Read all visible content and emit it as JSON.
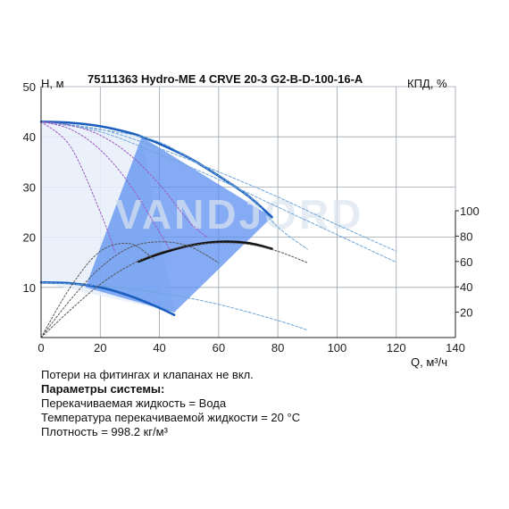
{
  "chart_data": {
    "type": "line",
    "title": "75111363 Hydro-ME 4 CRVE 20-3 G2-B-D-100-16-A",
    "ylabel": "H, м",
    "y2label": "КПД, %",
    "xlabel": "Q, м³/ч",
    "xlim": [
      0,
      140
    ],
    "ylim": [
      0,
      50
    ],
    "y2lim": [
      0,
      100
    ],
    "x_ticks": [
      "0",
      "20",
      "40",
      "60",
      "80",
      "100",
      "120",
      "140"
    ],
    "y_ticks": [
      "10",
      "20",
      "30",
      "40",
      "50"
    ],
    "y2_ticks": [
      "20",
      "40",
      "60",
      "80",
      "100"
    ],
    "grid": true,
    "watermark": "VANDJORD",
    "operating_area": {
      "color": "#5b8ff0",
      "polygon": [
        [
          34,
          40
        ],
        [
          78,
          24
        ],
        [
          45,
          5
        ],
        [
          15,
          10
        ]
      ]
    },
    "series": [
      {
        "role": "max_speed_curve",
        "color": "#1a5fc0",
        "x": [
          0,
          10,
          20,
          30,
          34,
          40,
          50,
          60,
          70,
          78
        ],
        "y": [
          43,
          42.8,
          42.1,
          40.8,
          40,
          38.6,
          35.8,
          32.2,
          28.2,
          24
        ]
      },
      {
        "role": "max_speed_curve_extension",
        "color": "#6fa4d8",
        "x": [
          0,
          34,
          50,
          70,
          80,
          90
        ],
        "y": [
          43,
          40,
          35.8,
          28.2,
          22,
          17.6
        ]
      },
      {
        "role": "extended_curve_1",
        "color": "#6fa4d8",
        "x": [
          0,
          20,
          40,
          60,
          80,
          100,
          120
        ],
        "y": [
          43,
          41.5,
          37.7,
          33,
          28,
          22.5,
          17.2
        ]
      },
      {
        "role": "extended_curve_2",
        "color": "#6fa4d8",
        "x": [
          0,
          20,
          40,
          60,
          80,
          100,
          120
        ],
        "y": [
          43,
          41,
          36.5,
          31.5,
          26,
          20.5,
          15
        ]
      },
      {
        "role": "reduced_speed_curve_1",
        "color": "#9c5ac0",
        "x": [
          0,
          10,
          20,
          30,
          40,
          50,
          56
        ],
        "y": [
          43,
          42.3,
          40.3,
          36.4,
          30.5,
          23.1,
          20
        ]
      },
      {
        "role": "reduced_speed_curve_2",
        "color": "#9c5ac0",
        "x": [
          0,
          10,
          20,
          30,
          40,
          44
        ],
        "y": [
          43,
          41.5,
          37.4,
          30.5,
          21,
          17
        ]
      },
      {
        "role": "reduced_speed_curve_3",
        "color": "#9c5ac0",
        "x": [
          0,
          10,
          20,
          25
        ],
        "y": [
          43,
          38,
          25,
          17
        ]
      },
      {
        "role": "min_speed_curve",
        "color": "#1a5fc0",
        "x": [
          0,
          10,
          20,
          30,
          40,
          45
        ],
        "y": [
          11,
          10.8,
          10,
          8.3,
          5.9,
          4.5
        ]
      },
      {
        "role": "min_speed_curve_extension",
        "color": "#6fa4d8",
        "x": [
          0,
          20,
          40,
          60,
          80,
          90
        ],
        "y": [
          11,
          10.3,
          8.9,
          6.6,
          3.4,
          1.5
        ]
      },
      {
        "role": "efficiency_best",
        "color": "#111111",
        "axis": "y2",
        "x": [
          33,
          40,
          50,
          60,
          70,
          78
        ],
        "y": [
          60,
          66,
          72.5,
          75.5,
          74.5,
          70
        ]
      },
      {
        "role": "efficiency_curve_1",
        "color": "#555555",
        "axis": "y2",
        "x": [
          0,
          10,
          20,
          30,
          40,
          50,
          60,
          70,
          80,
          90
        ],
        "y": [
          0,
          22,
          42,
          57,
          67,
          72.5,
          74.7,
          73.5,
          68,
          59
        ]
      },
      {
        "role": "efficiency_curve_2",
        "color": "#555555",
        "axis": "y2",
        "x": [
          0,
          10,
          20,
          30,
          40,
          50,
          60
        ],
        "y": [
          0,
          30,
          55,
          71,
          75.5,
          72,
          59
        ]
      },
      {
        "role": "efficiency_curve_3",
        "color": "#555555",
        "axis": "y2",
        "x": [
          0,
          10,
          20,
          30,
          38
        ],
        "y": [
          0,
          40,
          68,
          74,
          62
        ]
      }
    ]
  },
  "notes": {
    "line1": "Потери на фитингах и клапанах не вкл.",
    "heading": "Параметры системы:",
    "line2": "Перекачиваемая жидкость = Вода",
    "line3": "Температура перекачиваемой жидкости = 20 °C",
    "line4": "Плотность = 998.2 кг/м³"
  }
}
